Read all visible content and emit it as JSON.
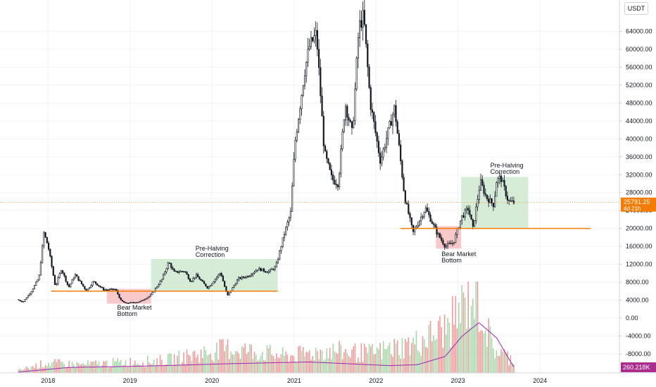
{
  "currency": "USDT",
  "colors": {
    "up": "#ffffff",
    "down": "#131722",
    "candle_border": "#131722",
    "support": "#f57c00",
    "bear_zone": "#f7b7b7",
    "halving_zone": "#c8e6c9",
    "volume_up": "#a5d6a7",
    "volume_down": "#ef9a9a",
    "volume_ma": "#9c27b0",
    "price_tag": "#f57c00",
    "volume_tag": "#ab2e8f",
    "grid": "#f0f3fa"
  },
  "last_price": {
    "value": "25791.25",
    "countdown": "4d 21h"
  },
  "volume_label": "260.218K",
  "annotations": [
    {
      "id": "bear-1",
      "text": [
        "Bear Market",
        "Bottom"
      ]
    },
    {
      "id": "halving-1",
      "text": [
        "Pre-Halving",
        "Correction"
      ]
    },
    {
      "id": "bear-2",
      "text": [
        "Bear Market",
        "Bottom"
      ]
    },
    {
      "id": "halving-2",
      "text": [
        "Pre-Halving",
        "Correction"
      ]
    }
  ],
  "chart_data": {
    "type": "candlestick",
    "title": "",
    "x_ticks": [
      "2018",
      "2019",
      "2020",
      "2021",
      "2022",
      "2023",
      "2024"
    ],
    "y_ticks": [
      "64000.00",
      "60000.00",
      "56000.00",
      "52000.00",
      "48000.00",
      "44000.00",
      "40000.00",
      "36000.00",
      "32000.00",
      "28000.00",
      "24000.00",
      "20000.00",
      "16000.00",
      "12000.00",
      "8000.00",
      "4000.00",
      "0.00",
      "-4000.00",
      "-8000.00"
    ],
    "ylim": [
      -12000,
      68000
    ],
    "xlim": [
      "2017-06-01",
      "2024-12-20"
    ],
    "log_scale": false,
    "grid": true,
    "price_keypoints": [
      [
        "2017-08-20",
        4100
      ],
      [
        "2017-09-15",
        3600
      ],
      [
        "2017-10-20",
        5800
      ],
      [
        "2017-11-25",
        9000
      ],
      [
        "2017-12-17",
        19000
      ],
      [
        "2018-01-05",
        16000
      ],
      [
        "2018-02-06",
        7000
      ],
      [
        "2018-03-05",
        11000
      ],
      [
        "2018-04-06",
        6800
      ],
      [
        "2018-05-05",
        9700
      ],
      [
        "2018-06-25",
        6000
      ],
      [
        "2018-07-25",
        8200
      ],
      [
        "2018-09-10",
        6300
      ],
      [
        "2018-11-01",
        6400
      ],
      [
        "2018-11-25",
        3900
      ],
      [
        "2018-12-15",
        3300
      ],
      [
        "2019-02-15",
        3600
      ],
      [
        "2019-04-05",
        5000
      ],
      [
        "2019-05-25",
        8500
      ],
      [
        "2019-06-26",
        12500
      ],
      [
        "2019-07-20",
        10200
      ],
      [
        "2019-09-05",
        10500
      ],
      [
        "2019-10-01",
        8200
      ],
      [
        "2019-10-27",
        9500
      ],
      [
        "2019-12-17",
        6700
      ],
      [
        "2020-02-12",
        10200
      ],
      [
        "2020-03-13",
        4900
      ],
      [
        "2020-05-01",
        8800
      ],
      [
        "2020-06-15",
        9400
      ],
      [
        "2020-07-28",
        11000
      ],
      [
        "2020-09-10",
        10300
      ],
      [
        "2020-10-15",
        11400
      ],
      [
        "2020-11-20",
        18500
      ],
      [
        "2020-12-20",
        23500
      ],
      [
        "2021-01-08",
        39000
      ],
      [
        "2021-02-20",
        55000
      ],
      [
        "2021-03-13",
        60500
      ],
      [
        "2021-04-14",
        63500
      ],
      [
        "2021-05-19",
        37000
      ],
      [
        "2021-06-22",
        31000
      ],
      [
        "2021-07-20",
        30000
      ],
      [
        "2021-08-20",
        48000
      ],
      [
        "2021-09-21",
        41000
      ],
      [
        "2021-10-20",
        65000
      ],
      [
        "2021-11-10",
        67500
      ],
      [
        "2021-12-10",
        48000
      ],
      [
        "2022-01-24",
        35000
      ],
      [
        "2022-03-28",
        47000
      ],
      [
        "2022-05-12",
        27000
      ],
      [
        "2022-06-18",
        19000
      ],
      [
        "2022-08-13",
        24500
      ],
      [
        "2022-10-01",
        19200
      ],
      [
        "2022-11-09",
        16000
      ],
      [
        "2022-12-15",
        16800
      ],
      [
        "2023-01-20",
        22500
      ],
      [
        "2023-02-20",
        24500
      ],
      [
        "2023-03-12",
        20000
      ],
      [
        "2023-04-14",
        30500
      ],
      [
        "2023-05-10",
        27000
      ],
      [
        "2023-06-14",
        25200
      ],
      [
        "2023-06-23",
        30500
      ],
      [
        "2023-07-14",
        31400
      ],
      [
        "2023-08-17",
        26000
      ],
      [
        "2023-09-05",
        25791
      ]
    ],
    "support_lines": [
      {
        "from": "2018-01-15",
        "to": "2020-10-20",
        "value": 6000
      },
      {
        "from": "2022-04-20",
        "to": "2024-08-15",
        "value": 20000
      }
    ],
    "zones": [
      {
        "kind": "bear",
        "from": "2018-09-20",
        "to": "2019-04-05",
        "low": 3200,
        "high": 6500
      },
      {
        "kind": "halving",
        "from": "2019-04-05",
        "to": "2020-10-20",
        "low": 6000,
        "high": 13200
      },
      {
        "kind": "bear",
        "from": "2022-09-25",
        "to": "2023-01-15",
        "low": 15500,
        "high": 20500
      },
      {
        "kind": "halving",
        "from": "2023-01-15",
        "to": "2023-11-10",
        "low": 20000,
        "high": 31500
      }
    ],
    "volume": {
      "name": "Volume",
      "keypoints": [
        [
          "2017-08-20",
          0.03
        ],
        [
          "2017-12-20",
          0.12
        ],
        [
          "2018-06-01",
          0.1
        ],
        [
          "2018-12-01",
          0.13
        ],
        [
          "2019-06-01",
          0.15
        ],
        [
          "2020-03-15",
          0.3
        ],
        [
          "2020-12-01",
          0.2
        ],
        [
          "2021-05-15",
          0.27
        ],
        [
          "2021-12-01",
          0.24
        ],
        [
          "2022-06-15",
          0.35
        ],
        [
          "2022-11-15",
          0.55
        ],
        [
          "2023-03-15",
          1.0
        ],
        [
          "2023-06-01",
          0.3
        ],
        [
          "2023-09-05",
          0.15
        ]
      ],
      "ma_keypoints": [
        [
          "2017-08-20",
          0.01
        ],
        [
          "2018-04-01",
          0.06
        ],
        [
          "2018-12-01",
          0.07
        ],
        [
          "2019-06-01",
          0.08
        ],
        [
          "2020-03-01",
          0.1
        ],
        [
          "2020-09-01",
          0.11
        ],
        [
          "2021-03-01",
          0.12
        ],
        [
          "2021-09-01",
          0.1
        ],
        [
          "2022-03-01",
          0.08
        ],
        [
          "2022-07-01",
          0.09
        ],
        [
          "2022-11-01",
          0.18
        ],
        [
          "2023-01-15",
          0.4
        ],
        [
          "2023-04-01",
          0.55
        ],
        [
          "2023-06-20",
          0.38
        ],
        [
          "2023-08-20",
          0.12
        ],
        [
          "2023-09-05",
          0.06
        ]
      ]
    }
  }
}
